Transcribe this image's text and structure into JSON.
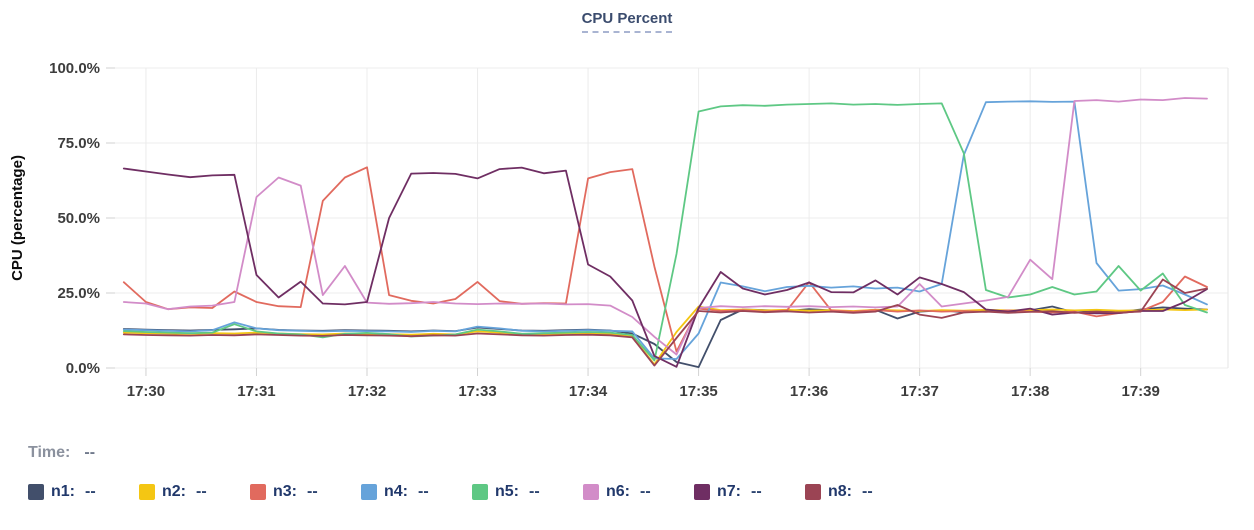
{
  "header": {
    "title": "CPU Percent"
  },
  "status": {
    "time_label": "Time:",
    "time_value": "--"
  },
  "legend": {
    "items": [
      {
        "name": "n1",
        "value": "--",
        "color": "#424f6b"
      },
      {
        "name": "n2",
        "value": "--",
        "color": "#f4c613"
      },
      {
        "name": "n3",
        "value": "--",
        "color": "#e16a5e"
      },
      {
        "name": "n4",
        "value": "--",
        "color": "#66a3da"
      },
      {
        "name": "n5",
        "value": "--",
        "color": "#5ec884"
      },
      {
        "name": "n6",
        "value": "--",
        "color": "#d28cc8"
      },
      {
        "name": "n7",
        "value": "--",
        "color": "#6f2e63"
      },
      {
        "name": "n8",
        "value": "--",
        "color": "#9b4454"
      }
    ]
  },
  "chart_data": {
    "type": "line",
    "title": "CPU Percent",
    "xlabel": "",
    "ylabel": "CPU (percentage)",
    "ylim": [
      0,
      100
    ],
    "x_range": [
      -0.28,
      9.79
    ],
    "x_unit": "minutes after 17:30, samples every 12s",
    "grid": true,
    "legend_position": "bottom",
    "yticks": [
      {
        "value": 0,
        "label": "0.0%"
      },
      {
        "value": 25,
        "label": "25.0%"
      },
      {
        "value": 50,
        "label": "50.0%"
      },
      {
        "value": 75,
        "label": "75.0%"
      },
      {
        "value": 100,
        "label": "100.0%"
      }
    ],
    "xticks": [
      {
        "value": 0,
        "label": "17:30"
      },
      {
        "value": 1,
        "label": "17:31"
      },
      {
        "value": 2,
        "label": "17:32"
      },
      {
        "value": 3,
        "label": "17:33"
      },
      {
        "value": 4,
        "label": "17:34"
      },
      {
        "value": 5,
        "label": "17:35"
      },
      {
        "value": 6,
        "label": "17:36"
      },
      {
        "value": 7,
        "label": "17:37"
      },
      {
        "value": 8,
        "label": "17:38"
      },
      {
        "value": 9,
        "label": "17:39"
      }
    ],
    "x": [
      -0.2,
      0,
      0.2,
      0.4,
      0.6,
      0.8,
      1,
      1.2,
      1.4,
      1.6,
      1.8,
      2,
      2.2,
      2.4,
      2.6,
      2.8,
      3,
      3.2,
      3.4,
      3.6,
      3.8,
      4,
      4.2,
      4.4,
      4.6,
      4.8,
      5,
      5.2,
      5.4,
      5.6,
      5.8,
      6,
      6.2,
      6.4,
      6.6,
      6.8,
      7,
      7.2,
      7.4,
      7.6,
      7.8,
      8,
      8.2,
      8.4,
      8.6,
      8.8,
      9,
      9.2,
      9.4,
      9.6
    ],
    "series": [
      {
        "name": "n1",
        "color": "#424f6b",
        "values": [
          13,
          12.8,
          12.6,
          12.5,
          12.7,
          12.9,
          13.2,
          12.7,
          12.5,
          12.4,
          12.6,
          12.5,
          12.4,
          12.2,
          12.5,
          12.3,
          13.5,
          13,
          12.5,
          12.4,
          12.6,
          12.8,
          12.5,
          11.5,
          8,
          2,
          0.3,
          16,
          19.5,
          19.3,
          19,
          19.6,
          19.2,
          18.8,
          19.4,
          16.5,
          18.8,
          19.2,
          18.6,
          19,
          18.8,
          19.2,
          20.5,
          18.5,
          19,
          18.6,
          19.5,
          20.2,
          19.8,
          19.5
        ]
      },
      {
        "name": "n2",
        "color": "#f4c613",
        "values": [
          11.8,
          11.6,
          11.5,
          11.4,
          11.6,
          11.5,
          11.8,
          11.5,
          11.3,
          11.2,
          11.5,
          11.4,
          11.3,
          11.1,
          11.4,
          11.2,
          12.2,
          11.8,
          11.4,
          11.3,
          11.5,
          11.6,
          11.4,
          10.5,
          1.2,
          12,
          20.5,
          19.3,
          19.5,
          19.2,
          19.4,
          19.1,
          19.3,
          19,
          19.4,
          19.2,
          19,
          19.3,
          19.1,
          19.4,
          19.2,
          19.3,
          19.5,
          19.2,
          19.4,
          19.1,
          19.2,
          19.5,
          19.3,
          19.5
        ]
      },
      {
        "name": "n3",
        "color": "#e16a5e",
        "values": [
          28.6,
          22,
          19.6,
          20.2,
          20,
          25.5,
          22,
          20.6,
          20.3,
          55.7,
          63.5,
          66.9,
          24.3,
          22.4,
          21.5,
          23,
          28.7,
          22.3,
          21.4,
          21.6,
          21.5,
          63.2,
          65.3,
          66.3,
          33.8,
          5.5,
          19.8,
          19,
          19.3,
          18.8,
          19.2,
          28.6,
          19.2,
          18.8,
          19.3,
          18.8,
          19.2,
          18.8,
          19,
          18.7,
          19.2,
          18.8,
          18.5,
          18.8,
          17.2,
          18.3,
          19,
          22,
          30.5,
          27
        ]
      },
      {
        "name": "n4",
        "color": "#66a3da",
        "values": [
          12.8,
          12.6,
          12.4,
          12.2,
          12.6,
          15.2,
          13.2,
          12.6,
          12.4,
          12.2,
          12.4,
          12.3,
          12.2,
          12,
          12.4,
          12.2,
          13.8,
          13.2,
          12.4,
          12.2,
          12.4,
          12.6,
          12.4,
          12.2,
          3.2,
          3,
          11.5,
          28.5,
          27.2,
          25.6,
          27,
          27.4,
          26.8,
          27.2,
          26.5,
          26.8,
          25.5,
          28,
          71,
          88.6,
          88.8,
          88.9,
          88.7,
          88.8,
          35,
          25.8,
          26.3,
          27.5,
          24.5,
          21.2
        ]
      },
      {
        "name": "n5",
        "color": "#5ec884",
        "values": [
          12.3,
          12,
          11.8,
          11.6,
          11.8,
          14.6,
          12.2,
          11.5,
          11.2,
          10.2,
          11.4,
          11.7,
          11.3,
          10.5,
          10.8,
          11.2,
          12.8,
          12.2,
          11.4,
          11.6,
          11.8,
          12,
          11.8,
          11,
          2.5,
          38,
          85.5,
          87.2,
          87.6,
          87.4,
          87.8,
          88,
          88.2,
          87.8,
          88,
          87.7,
          88,
          88.2,
          71.6,
          26,
          23.5,
          24.5,
          27,
          24.5,
          25.5,
          34,
          25.8,
          31.5,
          21,
          18.5
        ]
      },
      {
        "name": "n6",
        "color": "#d28cc8",
        "values": [
          22,
          21.5,
          19.6,
          20.5,
          20.8,
          22,
          57,
          63.5,
          60.8,
          24.3,
          34,
          21.8,
          21.4,
          21.6,
          22,
          21.5,
          21.3,
          21.5,
          21.4,
          21.5,
          21.2,
          21.3,
          20.8,
          17,
          10.4,
          4.5,
          20,
          20.6,
          20.3,
          20.6,
          20.4,
          20.6,
          20.3,
          20.5,
          20.2,
          20.5,
          28,
          20.5,
          21.5,
          22.5,
          23.7,
          36.1,
          29.6,
          89,
          89.3,
          88.8,
          89.5,
          89.3,
          90,
          89.8
        ]
      },
      {
        "name": "n7",
        "color": "#6f2e63",
        "values": [
          66.5,
          65.5,
          64.5,
          63.6,
          64.2,
          64.4,
          31,
          23.5,
          28.8,
          21.5,
          21.2,
          22,
          50,
          64.8,
          65,
          64.7,
          63.2,
          66.3,
          66.8,
          64.9,
          65.8,
          34.5,
          30.5,
          22.5,
          4,
          0.4,
          20,
          32,
          26.5,
          24.5,
          26,
          28.5,
          25.3,
          25.2,
          29.2,
          24.5,
          30.2,
          28,
          25.3,
          19.5,
          18.8,
          19.8,
          17.8,
          18.5,
          18.2,
          18.3,
          19,
          19,
          22,
          26.3
        ]
      },
      {
        "name": "n8",
        "color": "#9b4454",
        "values": [
          11.2,
          11,
          10.9,
          10.8,
          11,
          10.9,
          11.2,
          11,
          10.8,
          10.7,
          11,
          10.9,
          10.8,
          10.6,
          10.9,
          10.8,
          11.5,
          11.2,
          10.9,
          10.8,
          11,
          11.1,
          10.9,
          10.2,
          0.8,
          10,
          19,
          18.5,
          19,
          18.6,
          18.9,
          18.5,
          18.8,
          18.4,
          18.8,
          21,
          17.8,
          16.7,
          18.5,
          18.8,
          18.4,
          18.7,
          18.9,
          18.4,
          18.8,
          18.5,
          18.8,
          29.5,
          25,
          26.5
        ]
      }
    ]
  }
}
